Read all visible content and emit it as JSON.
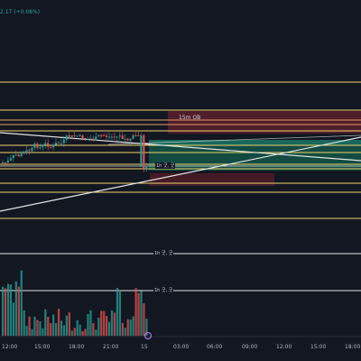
{
  "header": {
    "change_text": "2.17 (+0.08%)"
  },
  "colors": {
    "background": "#131722",
    "up": "#26a69a",
    "down": "#ef5350",
    "level_yellow": "#f0d36a",
    "level_orange": "#e8a061",
    "trendline": "#e6e6e6",
    "ob_fill": "#5c1f2b",
    "green_zone": "#124e45"
  },
  "order_block": {
    "label": "15m OB"
  },
  "levels": [
    {
      "label": "1h 굿, 굿"
    },
    {
      "label": "1h 굿, 굿"
    },
    {
      "label": "1h 굿, 굿"
    }
  ],
  "x_axis": {
    "ticks": [
      "12:00",
      "15:00",
      "18:00",
      "21:00",
      "15",
      "03:00",
      "06:00",
      "09:00",
      "12:00",
      "15:00",
      "18:00"
    ]
  },
  "chart_data": {
    "type": "candlestick",
    "title": "",
    "xlabel": "",
    "ylabel": "",
    "x_ticks": [
      "12:00",
      "15:00",
      "18:00",
      "21:00",
      "15",
      "03:00",
      "06:00",
      "09:00",
      "12:00",
      "15:00",
      "18:00"
    ],
    "annotations": [
      "15m OB",
      "1h 굿, 굿"
    ]
  }
}
